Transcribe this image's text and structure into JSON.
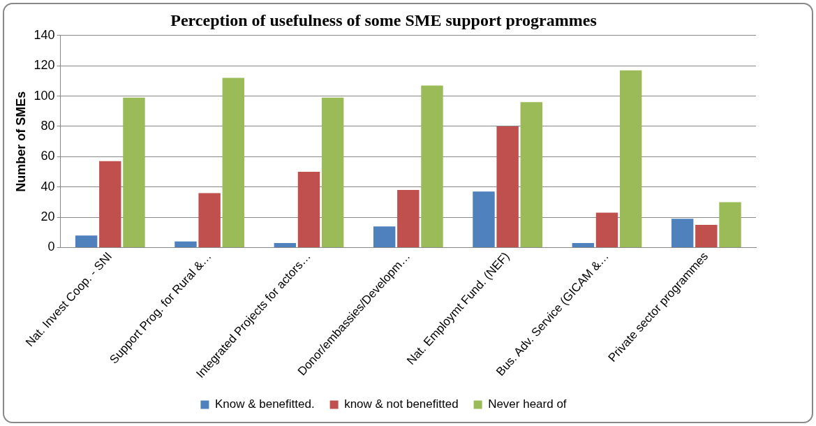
{
  "chart_data": {
    "type": "bar",
    "title": "Perception of usefulness of some SME support programmes",
    "ylabel": "Number of SMEs",
    "categories": [
      "Nat. Invest Coop. - SNI",
      "Support Prog. for Rural &…",
      "Integrated Projects for actors…",
      "Donor/embassies/Developm…",
      "Nat. Employmt Fund. (NEF)",
      "Bus. Adv. Service (GICAM &…",
      "Private sector programmes"
    ],
    "series": [
      {
        "name": "Know & benefitted.",
        "color": "#4f81bd",
        "values": [
          8,
          4,
          3,
          14,
          37,
          3,
          19
        ]
      },
      {
        "name": "know & not benefitted",
        "color": "#c0504d",
        "values": [
          57,
          36,
          50,
          38,
          80,
          23,
          15
        ]
      },
      {
        "name": "Never heard of",
        "color": "#9bbb59",
        "values": [
          99,
          112,
          99,
          107,
          96,
          117,
          30
        ]
      }
    ],
    "ylim": [
      0,
      140
    ],
    "yticks": [
      0,
      20,
      40,
      60,
      80,
      100,
      120,
      140
    ],
    "grid": "y",
    "legend": "bottom"
  }
}
